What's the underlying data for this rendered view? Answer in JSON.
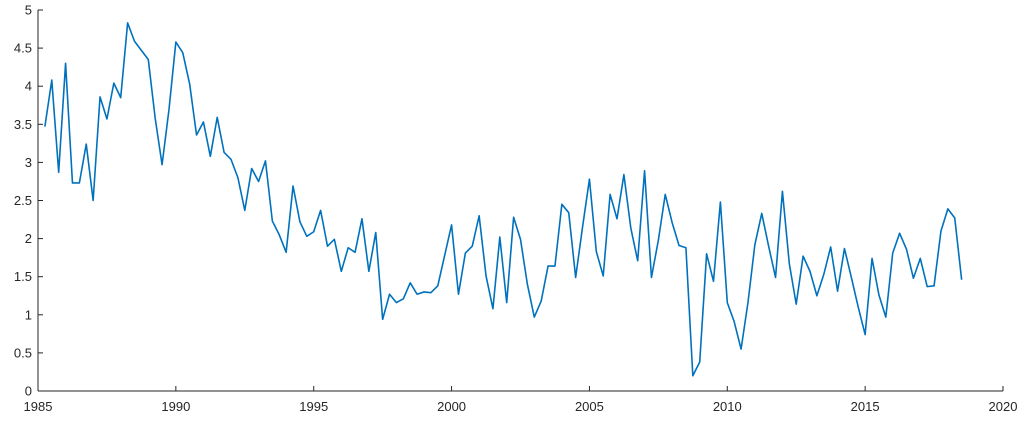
{
  "chart_data": {
    "type": "line",
    "title": "",
    "xlabel": "",
    "ylabel": "",
    "xlim": [
      1985,
      2020
    ],
    "ylim": [
      0,
      5
    ],
    "xticks": [
      1985,
      1990,
      1995,
      2000,
      2005,
      2010,
      2015,
      2020
    ],
    "yticks": [
      0,
      0.5,
      1,
      1.5,
      2,
      2.5,
      3,
      3.5,
      4,
      4.5,
      5
    ],
    "xtick_labels": [
      "1985",
      "1990",
      "1995",
      "2000",
      "2005",
      "2010",
      "2015",
      "2020"
    ],
    "ytick_labels": [
      "0",
      "0.5",
      "1",
      "1.5",
      "2",
      "2.5",
      "3",
      "3.5",
      "4",
      "4.5",
      "5"
    ],
    "grid": false,
    "series": [
      {
        "color": "#0072BD",
        "x": [
          1985.25,
          1985.5,
          1985.75,
          1986.0,
          1986.25,
          1986.5,
          1986.75,
          1987.0,
          1987.25,
          1987.5,
          1987.75,
          1988.0,
          1988.25,
          1988.5,
          1988.75,
          1989.0,
          1989.25,
          1989.5,
          1989.75,
          1990.0,
          1990.25,
          1990.5,
          1990.75,
          1991.0,
          1991.25,
          1991.5,
          1991.75,
          1992.0,
          1992.25,
          1992.5,
          1992.75,
          1993.0,
          1993.25,
          1993.5,
          1993.75,
          1994.0,
          1994.25,
          1994.5,
          1994.75,
          1995.0,
          1995.25,
          1995.5,
          1995.75,
          1996.0,
          1996.25,
          1996.5,
          1996.75,
          1997.0,
          1997.25,
          1997.5,
          1997.75,
          1998.0,
          1998.25,
          1998.5,
          1998.75,
          1999.0,
          1999.25,
          1999.5,
          1999.75,
          2000.0,
          2000.25,
          2000.5,
          2000.75,
          2001.0,
          2001.25,
          2001.5,
          2001.75,
          2002.0,
          2002.25,
          2002.5,
          2002.75,
          2003.0,
          2003.25,
          2003.5,
          2003.75,
          2004.0,
          2004.25,
          2004.5,
          2004.75,
          2005.0,
          2005.25,
          2005.5,
          2005.75,
          2006.0,
          2006.25,
          2006.5,
          2006.75,
          2007.0,
          2007.25,
          2007.5,
          2007.75,
          2008.0,
          2008.25,
          2008.5,
          2008.75,
          2009.0,
          2009.25,
          2009.5,
          2009.75,
          2010.0,
          2010.25,
          2010.5,
          2010.75,
          2011.0,
          2011.25,
          2011.5,
          2011.75,
          2012.0,
          2012.25,
          2012.5,
          2012.75,
          2013.0,
          2013.25,
          2013.5,
          2013.75,
          2014.0,
          2014.25,
          2014.5,
          2014.75,
          2015.0,
          2015.25,
          2015.5,
          2015.75,
          2016.0,
          2016.25,
          2016.5,
          2016.75,
          2017.0,
          2017.25,
          2017.5,
          2017.75,
          2018.0,
          2018.25,
          2018.5
        ],
        "y": [
          3.47,
          4.08,
          2.87,
          4.3,
          2.73,
          2.73,
          3.24,
          2.5,
          3.86,
          3.57,
          4.04,
          3.85,
          4.83,
          4.59,
          4.47,
          4.35,
          3.58,
          2.97,
          3.69,
          4.58,
          4.44,
          4.03,
          3.36,
          3.53,
          3.08,
          3.59,
          3.13,
          3.04,
          2.8,
          2.37,
          2.92,
          2.75,
          3.02,
          2.23,
          2.05,
          1.82,
          2.69,
          2.22,
          2.03,
          2.09,
          2.37,
          1.9,
          1.99,
          1.57,
          1.88,
          1.82,
          2.26,
          1.57,
          2.08,
          0.94,
          1.27,
          1.16,
          1.21,
          1.42,
          1.27,
          1.3,
          1.29,
          1.38,
          1.78,
          2.18,
          1.27,
          1.81,
          1.9,
          2.3,
          1.51,
          1.08,
          2.02,
          1.16,
          2.28,
          1.99,
          1.4,
          0.97,
          1.18,
          1.64,
          1.64,
          2.45,
          2.34,
          1.49,
          2.15,
          2.78,
          1.83,
          1.51,
          2.58,
          2.26,
          2.84,
          2.14,
          1.71,
          2.89,
          1.49,
          1.98,
          2.58,
          2.21,
          1.91,
          1.88,
          0.2,
          0.38,
          1.8,
          1.44,
          2.48,
          1.16,
          0.91,
          0.55,
          1.16,
          1.92,
          2.33,
          1.9,
          1.49,
          2.62,
          1.67,
          1.14,
          1.77,
          1.57,
          1.25,
          1.53,
          1.89,
          1.31,
          1.87,
          1.49,
          1.1,
          0.74,
          1.74,
          1.26,
          0.97,
          1.81,
          2.07,
          1.86,
          1.48,
          1.74,
          1.37,
          1.38,
          2.1,
          2.39,
          2.27,
          1.46
        ]
      }
    ]
  }
}
